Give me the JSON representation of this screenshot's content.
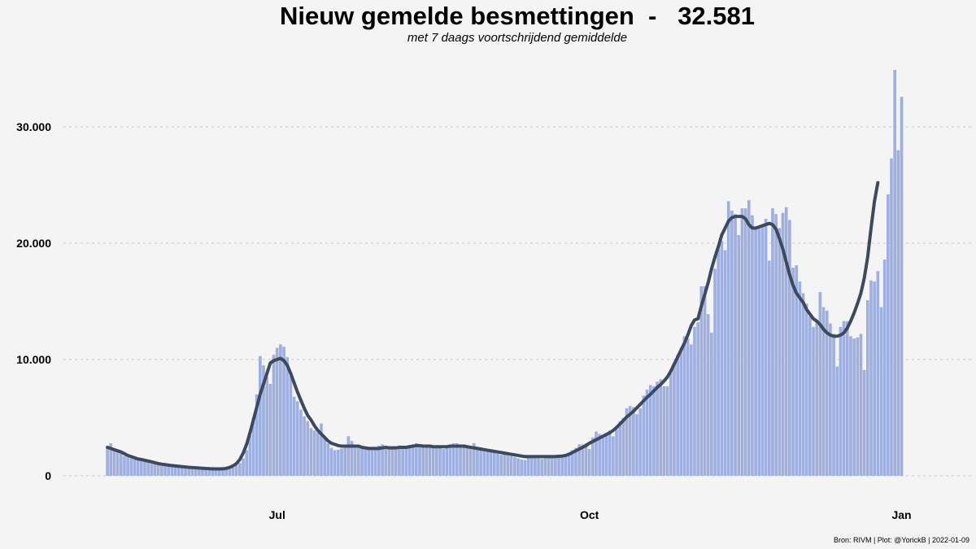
{
  "chart_data": {
    "type": "bar",
    "title": "Nieuw gemelde besmettingen  -   32.581",
    "subtitle": "met 7 daags voortschrijdend gemiddelde",
    "caption": "Bron: RIVM | Plot: @YorickB |  2022-01-09",
    "x_start": "2021-05-12",
    "x_end": "2022-01-09",
    "xticks": [
      {
        "date": "2021-07-01",
        "label": "Jul"
      },
      {
        "date": "2021-10-01",
        "label": "Oct"
      },
      {
        "date": "2022-01-01",
        "label": "Jan"
      }
    ],
    "ylim": [
      0,
      35000
    ],
    "yticks": [
      {
        "value": 0,
        "label": "0"
      },
      {
        "value": 10000,
        "label": "10.000"
      },
      {
        "value": 20000,
        "label": "20.000"
      },
      {
        "value": 30000,
        "label": "30.000"
      }
    ],
    "grid": "horizontal dashed",
    "series": [
      {
        "type": "bar",
        "color": "#9fb0e0",
        "values": [
          2500,
          2800,
          2300,
          2100,
          1900,
          1700,
          1600,
          1500,
          1500,
          1400,
          1300,
          1300,
          1200,
          1100,
          1000,
          1000,
          950,
          900,
          850,
          800,
          780,
          760,
          740,
          720,
          700,
          680,
          660,
          640,
          620,
          600,
          580,
          570,
          560,
          550,
          540,
          530,
          600,
          700,
          900,
          1100,
          1500,
          2200,
          3500,
          5000,
          7000,
          10300,
          9500,
          8500,
          7900,
          10400,
          11000,
          11300,
          11100,
          10200,
          8600,
          6800,
          6400,
          5700,
          5100,
          4700,
          4100,
          3900,
          3700,
          4500,
          3200,
          2800,
          2400,
          2200,
          2250,
          2350,
          2500,
          3400,
          3000,
          2600,
          2500,
          2400,
          2300,
          2250,
          2300,
          2400,
          2600,
          2700,
          2500,
          2400,
          2400,
          2500,
          2600,
          2500,
          2450,
          2500,
          2500,
          2800,
          2700,
          2600,
          2500,
          2500,
          2550,
          2500,
          2400,
          2300,
          2500,
          2700,
          2800,
          2800,
          2700,
          2700,
          2400,
          2300,
          2800,
          2500,
          2400,
          2300,
          2200,
          2100,
          2000,
          1900,
          1800,
          1900,
          1800,
          1700,
          1600,
          1500,
          1400,
          1350,
          1700,
          1600,
          1550,
          1500,
          1450,
          1500,
          1600,
          1550,
          1550,
          1600,
          1700,
          1750,
          2000,
          2200,
          2400,
          2700,
          2700,
          2800,
          2300,
          3300,
          3800,
          3600,
          3500,
          3700,
          3900,
          3400,
          4000,
          4700,
          5000,
          5800,
          6000,
          5900,
          5300,
          5800,
          6900,
          7400,
          7800,
          7700,
          8100,
          8300,
          7700,
          7700,
          9000,
          9700,
          10400,
          11000,
          12000,
          11800,
          11300,
          12800,
          13200,
          16300,
          16300,
          13900,
          12300,
          17800,
          19500,
          20200,
          19400,
          23600,
          22800,
          22500,
          20700,
          23000,
          23000,
          23700,
          22400,
          21300,
          21500,
          21400,
          22100,
          18500,
          23000,
          22500,
          21300,
          22600,
          23100,
          22000,
          17900,
          18100,
          16700,
          15700,
          14800,
          13700,
          12800,
          13300,
          15800,
          14500,
          14200,
          13100,
          12200,
          9400,
          12800,
          13300,
          13300,
          12000,
          11800,
          11900,
          12200,
          9100,
          15100,
          16800,
          16700,
          17600,
          14500,
          18600,
          24200,
          27300,
          34900,
          28000,
          32581
        ]
      },
      {
        "type": "line",
        "name": "7 daags voortschrijdend gemiddelde",
        "color": "#3d4a5e",
        "values": [
          2450,
          2350,
          2250,
          2150,
          2050,
          1900,
          1750,
          1650,
          1550,
          1450,
          1400,
          1330,
          1270,
          1200,
          1120,
          1050,
          1000,
          960,
          920,
          880,
          850,
          820,
          790,
          760,
          730,
          710,
          690,
          670,
          650,
          630,
          610,
          600,
          590,
          590,
          600,
          640,
          720,
          850,
          1050,
          1400,
          1950,
          2700,
          3700,
          4800,
          5900,
          7000,
          7900,
          8800,
          9700,
          9900,
          10000,
          10100,
          9900,
          9500,
          8800,
          8000,
          7200,
          6500,
          5800,
          5200,
          4800,
          4300,
          3900,
          3600,
          3300,
          3000,
          2800,
          2700,
          2600,
          2550,
          2550,
          2550,
          2550,
          2550,
          2550,
          2450,
          2400,
          2350,
          2350,
          2350,
          2350,
          2400,
          2450,
          2400,
          2400,
          2400,
          2450,
          2450,
          2450,
          2500,
          2550,
          2600,
          2600,
          2550,
          2550,
          2550,
          2500,
          2500,
          2500,
          2500,
          2500,
          2550,
          2550,
          2550,
          2550,
          2550,
          2500,
          2450,
          2400,
          2350,
          2300,
          2250,
          2200,
          2150,
          2100,
          2050,
          2000,
          1950,
          1900,
          1850,
          1800,
          1750,
          1700,
          1650,
          1650,
          1650,
          1650,
          1650,
          1650,
          1650,
          1650,
          1650,
          1660,
          1680,
          1700,
          1750,
          1850,
          2000,
          2150,
          2300,
          2450,
          2600,
          2800,
          2950,
          3100,
          3250,
          3400,
          3550,
          3700,
          3900,
          4150,
          4450,
          4750,
          5050,
          5300,
          5550,
          5850,
          6150,
          6450,
          6750,
          7000,
          7300,
          7600,
          7850,
          8150,
          8500,
          9000,
          9600,
          10200,
          10800,
          11400,
          12100,
          12900,
          13400,
          13500,
          14600,
          15600,
          16600,
          17800,
          18800,
          19700,
          20700,
          21300,
          21900,
          22200,
          22300,
          22300,
          22300,
          22100,
          21600,
          21300,
          21300,
          21400,
          21500,
          21600,
          21700,
          21600,
          21200,
          20400,
          19500,
          18400,
          17300,
          16400,
          15700,
          15300,
          14900,
          14300,
          13900,
          13500,
          13300,
          13000,
          12600,
          12300,
          12100,
          12000,
          12000,
          12100,
          12300,
          12700,
          13300,
          14000,
          14800,
          15700,
          17000,
          18800,
          21300,
          23600,
          25200
        ]
      }
    ]
  }
}
